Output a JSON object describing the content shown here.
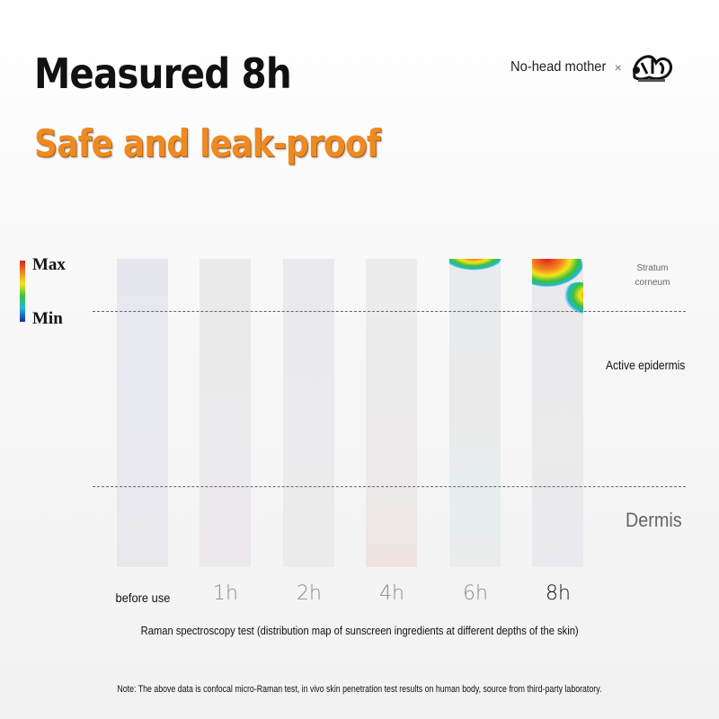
{
  "header": {
    "title": "Measured 8h",
    "subtitle": "Safe and leak-proof",
    "brand": "No-head mother",
    "brand_separator": "×"
  },
  "legend": {
    "max_label": "Max",
    "min_label": "Min"
  },
  "layers": {
    "stratum_corneum": [
      "Stratum",
      "corneum"
    ],
    "active_epidermis": "Active epidermis",
    "dermis": "Dermis"
  },
  "timepoints": [
    "before use",
    "1h",
    "2h",
    "4h",
    "6h",
    "8h"
  ],
  "caption": "Raman spectroscopy test (distribution map of sunscreen ingredients at different depths of the skin)",
  "note": "Note: The above data is confocal micro-Raman test, in vivo skin penetration test results on human body, source from third-party laboratory.",
  "colors": {
    "title": "#111111",
    "subtitle": "#ee8a22",
    "heat_max": "#e0201c",
    "heat_min": "#1a2ca0"
  }
}
